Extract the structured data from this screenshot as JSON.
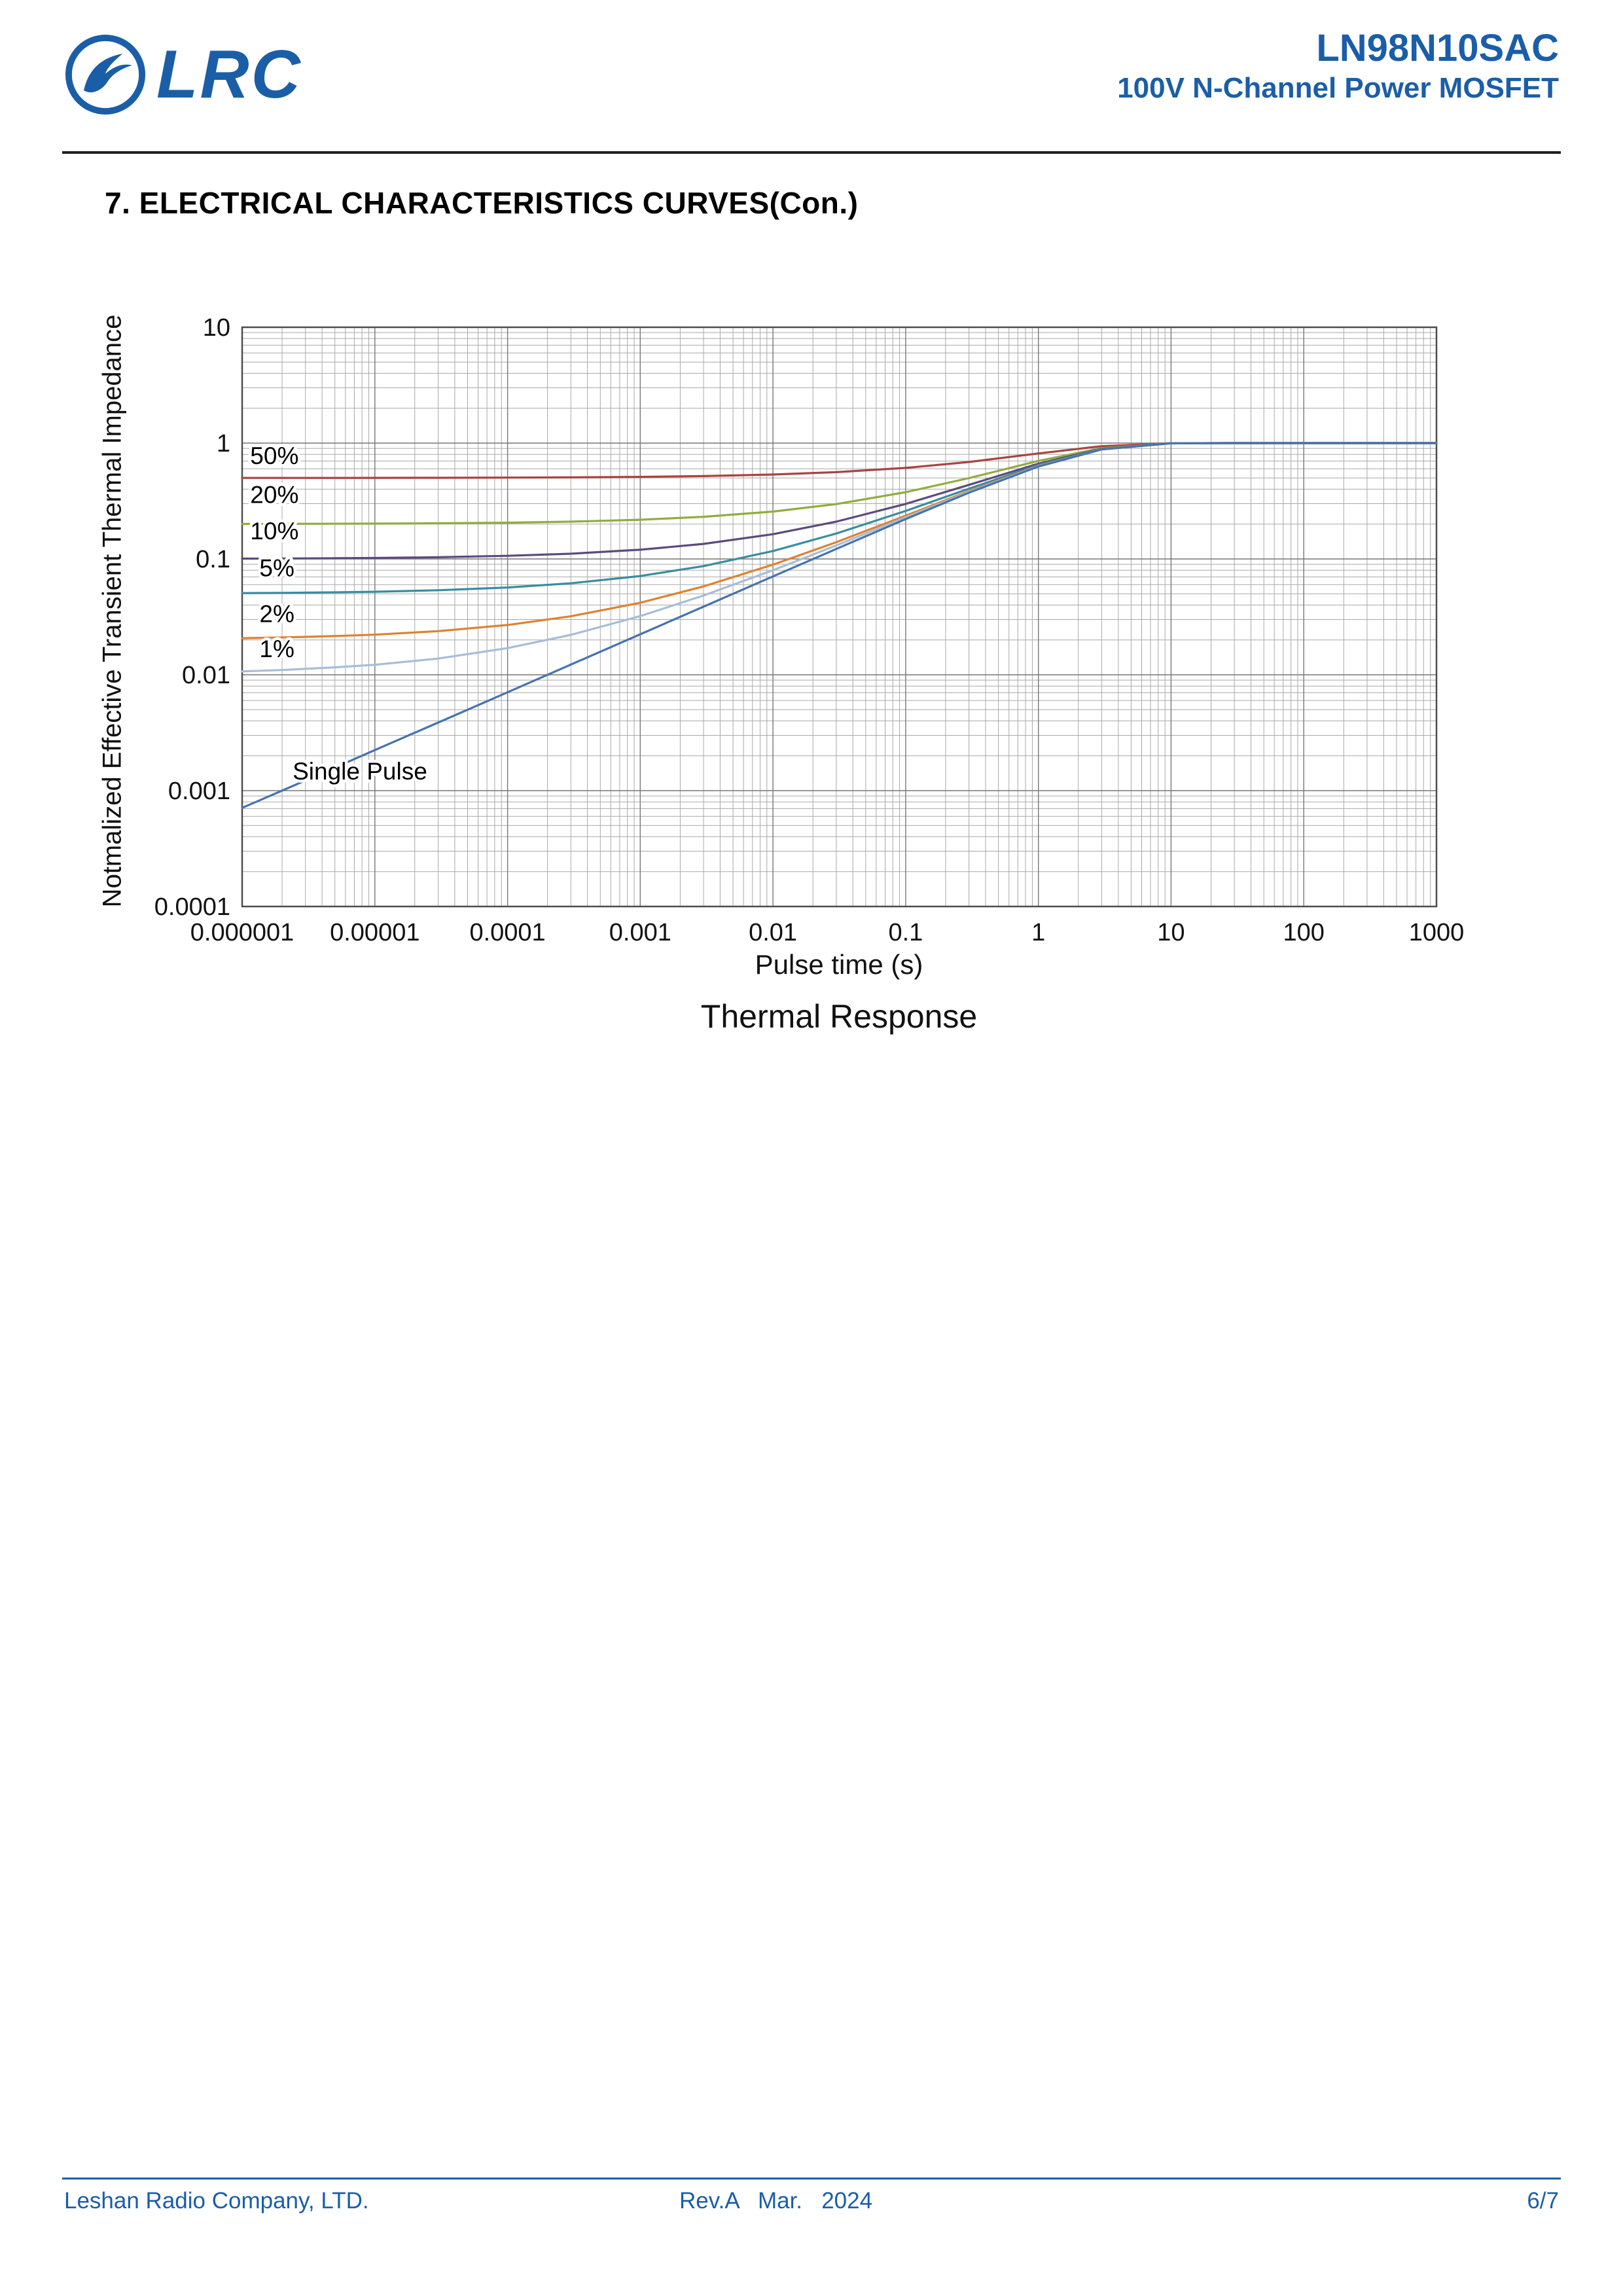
{
  "theme": {
    "accent": "#1b5ea8"
  },
  "header": {
    "logo_text": "LRC",
    "logo_icon": "lrc-bird-emblem",
    "part_number": "LN98N10SAC",
    "product_subtitle": "100V N-Channel Power MOSFET"
  },
  "section_title": "7. ELECTRICAL CHARACTERISTICS CURVES(Con.)",
  "chart_data": {
    "type": "line",
    "title": "Thermal Response",
    "xlabel": "Pulse time (s)",
    "ylabel": "Notmalized Effective Transient Thermal Impedance",
    "x_scale": "log",
    "y_scale": "log",
    "xlim": [
      1e-06,
      1000
    ],
    "ylim": [
      0.0001,
      10
    ],
    "x_ticks": [
      "0.000001",
      "0.00001",
      "0.0001",
      "0.001",
      "0.01",
      "0.1",
      "1",
      "10",
      "100",
      "1000"
    ],
    "y_ticks": [
      "10",
      "1",
      "0.1",
      "0.01",
      "0.001",
      "0.0001"
    ],
    "grid": true,
    "legend": "inline-labels",
    "colors": {
      "grid_minor": "#a8a8a8",
      "grid_major": "#777777",
      "border": "#4d4d4d"
    },
    "x": [
      1e-06,
      2e-06,
      5e-06,
      1e-05,
      3e-05,
      0.0001,
      0.0003,
      0.001,
      0.003,
      0.01,
      0.03,
      0.1,
      0.3,
      1,
      3,
      10,
      30,
      100,
      1000
    ],
    "series": [
      {
        "name": "50pct",
        "label": "50%",
        "color": "#a84442",
        "label_x": 1.15e-06,
        "label_y": 0.66,
        "values": [
          0.5004,
          0.5005,
          0.5008,
          0.5011,
          0.5019,
          0.5035,
          0.5061,
          0.5112,
          0.5194,
          0.5353,
          0.561,
          0.6104,
          0.6866,
          0.8137,
          0.9407,
          0.9983,
          1,
          1,
          1
        ]
      },
      {
        "name": "20pct",
        "label": "20%",
        "color": "#91ac3e",
        "label_x": 1.15e-06,
        "label_y": 0.305,
        "values": [
          0.2006,
          0.2008,
          0.2013,
          0.2018,
          0.2031,
          0.2057,
          0.2098,
          0.2179,
          0.231,
          0.2565,
          0.2976,
          0.3767,
          0.4986,
          0.7018,
          0.9051,
          0.9973,
          1,
          1,
          1
        ]
      },
      {
        "name": "10pct",
        "label": "10%",
        "color": "#5c4a7d",
        "label_x": 1.15e-06,
        "label_y": 0.148,
        "values": [
          0.1006,
          0.1009,
          0.1014,
          0.102,
          0.1035,
          0.1064,
          0.111,
          0.1201,
          0.1349,
          0.1636,
          0.2098,
          0.2988,
          0.4359,
          0.6646,
          0.8933,
          0.997,
          1,
          1,
          1
        ]
      },
      {
        "name": "5pct",
        "label": "5%",
        "color": "#3a8ca0",
        "label_x": 1.35e-06,
        "label_y": 0.071,
        "values": [
          0.0507,
          0.051,
          0.0515,
          0.0521,
          0.0537,
          0.0567,
          0.0616,
          0.0712,
          0.0868,
          0.1171,
          0.1659,
          0.2598,
          0.4045,
          0.6459,
          0.8873,
          0.9968,
          1,
          1,
          1
        ]
      },
      {
        "name": "2pct",
        "label": "2%",
        "color": "#dd8231",
        "label_x": 1.35e-06,
        "label_y": 0.0285,
        "values": [
          0.0207,
          0.021,
          0.0216,
          0.0222,
          0.0238,
          0.0269,
          0.032,
          0.0419,
          0.058,
          0.0893,
          0.1396,
          0.2364,
          0.3857,
          0.6348,
          0.8838,
          0.9967,
          1,
          1,
          1
        ]
      },
      {
        "name": "1pct",
        "label": "1%",
        "color": "#a7bdd8",
        "label_x": 1.35e-06,
        "label_y": 0.0142,
        "values": [
          0.0107,
          0.011,
          0.0116,
          0.0122,
          0.0138,
          0.017,
          0.0221,
          0.0321,
          0.0483,
          0.08,
          0.1308,
          0.2286,
          0.3795,
          0.631,
          0.8826,
          0.9967,
          1,
          1,
          1
        ]
      },
      {
        "name": "single_pulse",
        "label": "Single Pulse",
        "color": "#4673ad",
        "label_x": 2.4e-06,
        "label_y": 0.00125,
        "values": [
          0.00071,
          0.001,
          0.00158,
          0.00224,
          0.00387,
          0.00707,
          0.01225,
          0.02236,
          0.03873,
          0.07066,
          0.12202,
          0.22085,
          0.37321,
          0.62731,
          0.8814,
          0.99663,
          1,
          1,
          1
        ]
      }
    ]
  },
  "footer": {
    "company": "Leshan Radio Company, LTD.",
    "revision": "Rev.A   Mar.   2024",
    "page": "6/7"
  }
}
